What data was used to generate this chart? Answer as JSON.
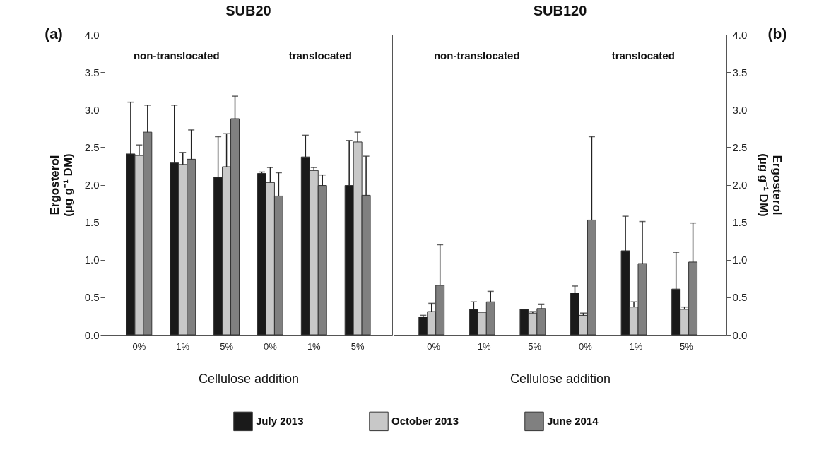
{
  "chart_data": [
    {
      "type": "bar",
      "title": "SUB20",
      "xlabel": "Cellulose addition",
      "ylabel": "Ergosterol (µg g⁻¹ DM)",
      "legend": "bottom",
      "categories": [
        "0%",
        "1%",
        "5%",
        "0%",
        "1%",
        "5%"
      ],
      "annotations": [
        "(a)",
        "non-translocated",
        "translocated"
      ],
      "ylim": [
        0,
        4
      ],
      "yticks": [
        {
          "value": 0,
          "label": "0.0"
        },
        {
          "value": 0.5,
          "label": "0.5"
        },
        {
          "value": 1,
          "label": "1.0"
        },
        {
          "value": 1.5,
          "label": "1.5"
        },
        {
          "value": 2,
          "label": "2.0"
        },
        {
          "value": 2.5,
          "label": "2.5"
        },
        {
          "value": 3,
          "label": "3.0"
        },
        {
          "value": 3.5,
          "label": "3.5"
        },
        {
          "value": 4,
          "label": "4.0"
        }
      ],
      "series": [
        {
          "name": "July 2013",
          "color": "#1a1a1a",
          "values": [
            2.41,
            2.29,
            2.1,
            2.15,
            2.37,
            1.99
          ],
          "errors": [
            [
              2.41,
              3.1
            ],
            [
              2.29,
              3.06
            ],
            [
              2.1,
              2.64
            ],
            [
              2.15,
              2.17
            ],
            [
              2.37,
              2.66
            ],
            [
              1.99,
              2.59
            ]
          ]
        },
        {
          "name": "October 2013",
          "color": "#c8c8c8",
          "values": [
            2.39,
            2.27,
            2.24,
            2.03,
            2.19,
            2.57
          ],
          "errors": [
            [
              2.39,
              2.53
            ],
            [
              2.27,
              2.43
            ],
            [
              2.24,
              2.68
            ],
            [
              2.03,
              2.23
            ],
            [
              2.19,
              2.23
            ],
            [
              2.57,
              2.7
            ]
          ]
        },
        {
          "name": "June 2014",
          "color": "#808080",
          "values": [
            2.7,
            2.34,
            2.88,
            1.85,
            1.99,
            1.86
          ],
          "errors": [
            [
              2.7,
              3.06
            ],
            [
              2.34,
              2.73
            ],
            [
              2.88,
              3.18
            ],
            [
              1.85,
              2.16
            ],
            [
              1.99,
              2.13
            ],
            [
              1.86,
              2.38
            ]
          ]
        }
      ]
    },
    {
      "type": "bar",
      "title": "SUB120",
      "xlabel": "Cellulose addition",
      "y2label": "Ergosterol (µg g⁻¹ DM)",
      "legend": "bottom",
      "categories": [
        "0%",
        "1%",
        "5%",
        "0%",
        "1%",
        "5%"
      ],
      "annotations": [
        "(b)",
        "non-translocated",
        "translocated"
      ],
      "y2lim": [
        0,
        4
      ],
      "y2ticks": [
        {
          "value": 0,
          "label": "0.0"
        },
        {
          "value": 0.5,
          "label": "0.5"
        },
        {
          "value": 1,
          "label": "1.0"
        },
        {
          "value": 1.5,
          "label": "1.5"
        },
        {
          "value": 2,
          "label": "2.0"
        },
        {
          "value": 2.5,
          "label": "2.5"
        },
        {
          "value": 3,
          "label": "3.0"
        },
        {
          "value": 3.5,
          "label": "3.5"
        },
        {
          "value": 4,
          "label": "4.0"
        }
      ],
      "series": [
        {
          "name": "July 2013",
          "color": "#1a1a1a",
          "axis": "y2",
          "values": [
            0.24,
            0.34,
            0.34,
            0.56,
            1.12,
            0.61
          ],
          "errors": [
            [
              0.24,
              0.26
            ],
            [
              0.34,
              0.44
            ],
            null,
            [
              0.56,
              0.65
            ],
            [
              1.12,
              1.58
            ],
            [
              0.61,
              1.1
            ]
          ]
        },
        {
          "name": "October 2013",
          "color": "#c8c8c8",
          "axis": "y2",
          "values": [
            0.31,
            0.3,
            0.29,
            0.26,
            0.37,
            0.34
          ],
          "errors": [
            [
              0.31,
              0.42
            ],
            null,
            [
              0.29,
              0.31
            ],
            [
              0.26,
              0.29
            ],
            [
              0.37,
              0.44
            ],
            [
              0.34,
              0.37
            ]
          ]
        },
        {
          "name": "June 2014",
          "color": "#808080",
          "axis": "y2",
          "values": [
            0.66,
            0.44,
            0.35,
            1.53,
            0.95,
            0.97
          ],
          "errors": [
            [
              0.66,
              1.2
            ],
            [
              0.44,
              0.58
            ],
            [
              0.35,
              0.41
            ],
            [
              1.53,
              2.64
            ],
            [
              0.95,
              1.51
            ],
            [
              0.97,
              1.49
            ]
          ]
        }
      ]
    }
  ]
}
